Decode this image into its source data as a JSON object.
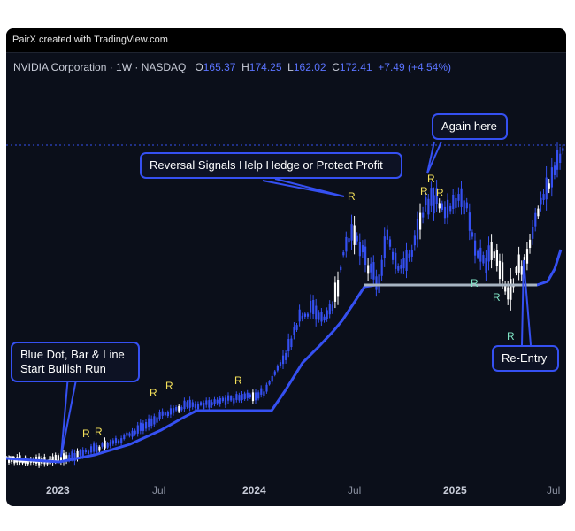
{
  "header": {
    "credit": "PairX created with TradingView.com"
  },
  "legend": {
    "symbol": "NVIDIA Corporation · 1W · NASDAQ",
    "o_label": "O",
    "o_value": "165.37",
    "h_label": "H",
    "h_value": "174.25",
    "l_label": "L",
    "l_value": "162.02",
    "c_label": "C",
    "c_value": "172.41",
    "change": "+7.49 (+4.54%)"
  },
  "callouts": {
    "bullish": "Blue Dot, Bar & Line Start Bullish Run",
    "reversal": "Reversal Signals Help Hedge or Protect Profit",
    "again": "Again here",
    "reentry": "Re-Entry"
  },
  "colors": {
    "background": "#0b0f1a",
    "bull": "#3550f2",
    "neutral": "#ffffff",
    "reversal_marker": "#f5e15a",
    "reentry_marker": "#7fe3c4",
    "support_line": "#a7b4c2"
  },
  "chart_data": {
    "type": "candlestick",
    "x_tick_labels": [
      "2023",
      "Jul",
      "2024",
      "Jul",
      "2025",
      "Jul"
    ],
    "marker_labels": [
      "R",
      "R",
      "R",
      "R",
      "R",
      "R",
      "R",
      "R",
      "R",
      "R",
      "R"
    ]
  }
}
